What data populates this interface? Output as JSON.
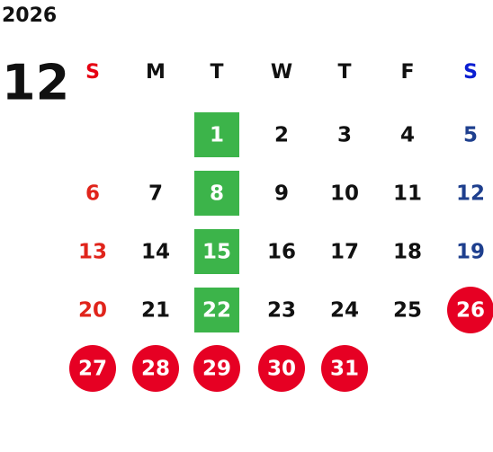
{
  "year": "2026",
  "month": "12",
  "weekdays": [
    "S",
    "M",
    "T",
    "W",
    "T",
    "F",
    "S"
  ],
  "weeks": [
    [
      null,
      null,
      1,
      2,
      3,
      4,
      5
    ],
    [
      6,
      7,
      8,
      9,
      10,
      11,
      12
    ],
    [
      13,
      14,
      15,
      16,
      17,
      18,
      19
    ],
    [
      20,
      21,
      22,
      23,
      24,
      25,
      26
    ],
    [
      27,
      28,
      29,
      30,
      31,
      null,
      null
    ]
  ],
  "green_days": [
    1,
    8,
    15,
    22
  ],
  "red_days": [
    26,
    27,
    28,
    29,
    30,
    31
  ],
  "colors": {
    "sunday_header": "#e60012",
    "saturday_header": "#0a1ed2",
    "sunday": "#e0241b",
    "saturday": "#1e3f8e",
    "weekday": "#111111",
    "green": "#3cb44a",
    "red": "#e60023",
    "marked_text": "#ffffff"
  }
}
